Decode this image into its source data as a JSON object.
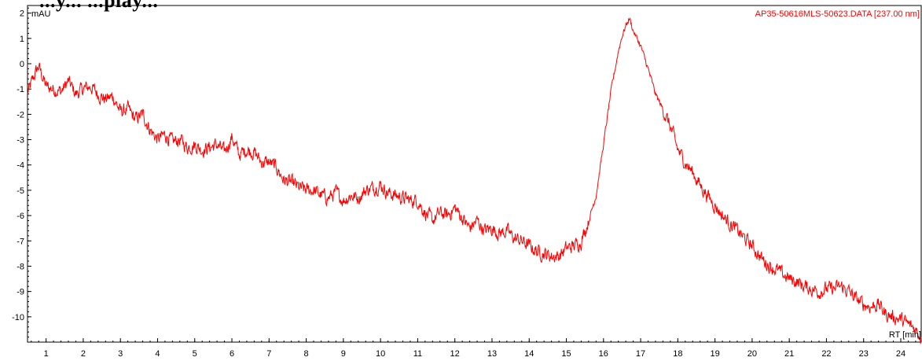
{
  "page": {
    "cut_title": "...y... ...play..."
  },
  "chart_data": {
    "type": "line",
    "y_unit_label": "mAU",
    "x_unit_label": "RT [min]",
    "trace_label": "AP35-50616MLS-50623.DATA [237.00 nm]",
    "xlim": [
      0.5,
      24.55
    ],
    "ylim": [
      -11.0,
      2.3
    ],
    "x_ticks": [
      1,
      2,
      3,
      4,
      5,
      6,
      7,
      8,
      9,
      10,
      11,
      12,
      13,
      14,
      15,
      16,
      17,
      18,
      19,
      20,
      21,
      22,
      23,
      24
    ],
    "y_ticks": [
      2,
      1,
      0,
      -1,
      -2,
      -3,
      -4,
      -5,
      -6,
      -7,
      -8,
      -9,
      -10
    ],
    "grid": false,
    "colors": {
      "trace": "#ff0000",
      "axes": "#000000"
    },
    "series": [
      {
        "x": [
          0.5,
          0.7,
          0.8,
          0.9,
          1.0,
          1.2,
          1.4,
          1.6,
          1.8,
          2.0,
          2.2,
          2.4,
          2.6,
          2.8,
          3.0,
          3.2,
          3.4,
          3.6,
          3.8,
          4.0,
          4.2,
          4.4,
          4.6,
          4.8,
          5.0,
          5.2,
          5.4,
          5.6,
          5.8,
          6.0,
          6.2,
          6.4,
          6.6,
          6.8,
          7.0,
          7.2,
          7.4,
          7.6,
          7.8,
          8.0,
          8.2,
          8.4,
          8.6,
          8.8,
          9.0,
          9.2,
          9.4,
          9.6,
          9.8,
          10.0,
          10.2,
          10.4,
          10.6,
          10.8,
          11.0,
          11.2,
          11.4,
          11.6,
          11.8,
          12.0,
          12.2,
          12.4,
          12.6,
          12.8,
          13.0,
          13.2,
          13.4,
          13.6,
          13.8,
          14.0,
          14.2,
          14.4,
          14.6,
          14.8,
          15.0,
          15.2,
          15.4,
          15.6,
          15.8,
          16.0,
          16.2,
          16.4,
          16.5,
          16.6,
          16.7,
          16.8,
          17.0,
          17.2,
          17.4,
          17.6,
          17.8,
          18.0,
          18.2,
          18.4,
          18.6,
          18.8,
          19.0,
          19.2,
          19.4,
          19.6,
          19.8,
          20.0,
          20.2,
          20.4,
          20.6,
          20.8,
          21.0,
          21.2,
          21.4,
          21.6,
          21.8,
          22.0,
          22.2,
          22.4,
          22.6,
          22.8,
          23.0,
          23.2,
          23.4,
          23.6,
          23.8,
          24.0,
          24.2,
          24.4,
          24.55
        ],
        "y": [
          -1.2,
          -0.4,
          -0.1,
          -0.5,
          -0.9,
          -1.0,
          -1.1,
          -0.7,
          -1.2,
          -1.0,
          -0.9,
          -1.2,
          -1.4,
          -1.3,
          -1.9,
          -1.8,
          -2.2,
          -2.0,
          -2.6,
          -3.0,
          -2.8,
          -3.1,
          -3.0,
          -3.3,
          -3.2,
          -3.4,
          -3.3,
          -3.2,
          -3.5,
          -2.9,
          -3.6,
          -3.4,
          -3.5,
          -3.9,
          -3.9,
          -4.1,
          -4.6,
          -4.7,
          -4.9,
          -5.0,
          -5.0,
          -5.2,
          -5.3,
          -5.1,
          -5.4,
          -5.2,
          -5.3,
          -5.0,
          -4.9,
          -4.8,
          -5.1,
          -5.2,
          -5.3,
          -5.4,
          -5.4,
          -5.9,
          -6.2,
          -5.9,
          -6.0,
          -5.7,
          -6.1,
          -6.5,
          -6.2,
          -6.6,
          -6.5,
          -6.7,
          -6.6,
          -6.9,
          -7.0,
          -7.2,
          -7.4,
          -7.5,
          -7.6,
          -7.6,
          -7.3,
          -7.2,
          -7.0,
          -6.2,
          -5.2,
          -3.2,
          -1.1,
          0.5,
          1.1,
          1.5,
          1.8,
          1.3,
          0.7,
          -0.2,
          -1.2,
          -1.8,
          -2.5,
          -3.4,
          -3.9,
          -4.3,
          -4.8,
          -5.2,
          -5.6,
          -6.0,
          -6.3,
          -6.6,
          -6.9,
          -7.2,
          -7.6,
          -7.9,
          -8.1,
          -8.3,
          -8.5,
          -8.6,
          -8.8,
          -8.9,
          -9.0,
          -8.9,
          -8.9,
          -8.8,
          -9.0,
          -9.3,
          -9.5,
          -9.6,
          -9.5,
          -9.9,
          -10.0,
          -10.1,
          -10.3,
          -10.5,
          -10.8
        ]
      }
    ]
  }
}
